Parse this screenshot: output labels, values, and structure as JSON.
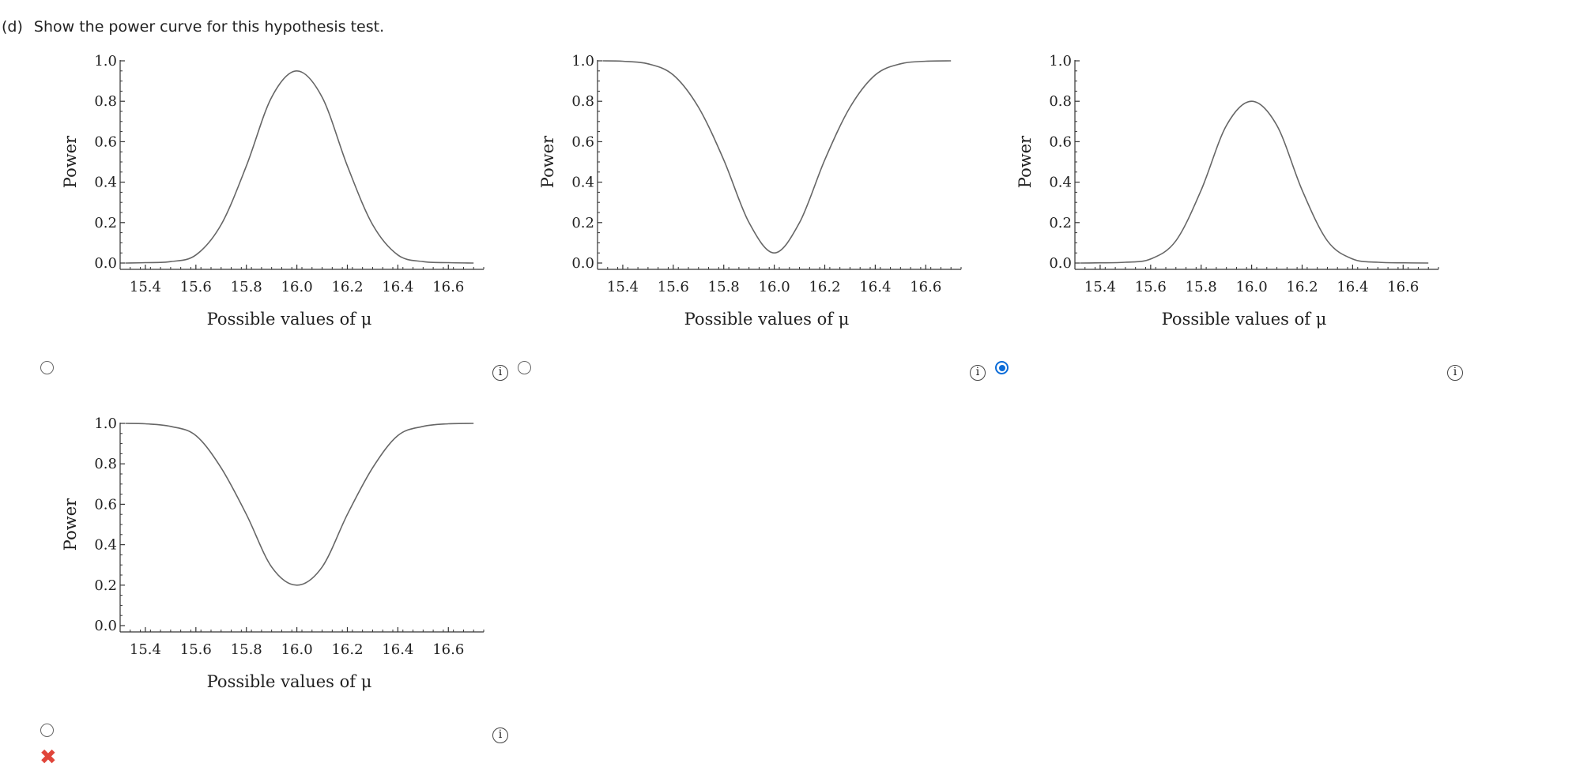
{
  "question": {
    "label": "(d)",
    "text": "Show the power curve for this hypothesis test."
  },
  "options": [
    {
      "id": "a",
      "selected": false,
      "info": "i",
      "curve": "peak",
      "peak_value": 0.95
    },
    {
      "id": "b",
      "selected": false,
      "info": "i",
      "curve": "dip",
      "min_value": 0.05
    },
    {
      "id": "c",
      "selected": true,
      "info": "i",
      "curve": "peak",
      "peak_value": 0.8
    },
    {
      "id": "d",
      "selected": false,
      "info": "i",
      "curve": "dip",
      "min_value": 0.2
    }
  ],
  "feedback": {
    "symbol": "✖",
    "color": "#e0453a"
  },
  "chart_data": [
    {
      "type": "line",
      "title": "",
      "xlabel": "Possible values of μ",
      "ylabel": "Power",
      "xlim": [
        15.3,
        16.74
      ],
      "ylim": [
        0,
        1
      ],
      "xticks": [
        "15.4",
        "15.6",
        "15.8",
        "16.0",
        "16.2",
        "16.4",
        "16.6"
      ],
      "yticks": [
        "0.0",
        "0.2",
        "0.4",
        "0.6",
        "0.8",
        "1.0"
      ],
      "series": [
        {
          "x": [
            15.32,
            15.4,
            15.5,
            15.6,
            15.7,
            15.8,
            15.9,
            16.0,
            16.1,
            16.2,
            16.3,
            16.4,
            16.5,
            16.6,
            16.7
          ],
          "y": [
            0.0,
            0.002,
            0.007,
            0.04,
            0.19,
            0.48,
            0.82,
            0.95,
            0.82,
            0.48,
            0.19,
            0.04,
            0.007,
            0.002,
            0.0
          ]
        }
      ]
    },
    {
      "type": "line",
      "title": "",
      "xlabel": "Possible values of μ",
      "ylabel": "Power",
      "xlim": [
        15.3,
        16.74
      ],
      "ylim": [
        0,
        1
      ],
      "xticks": [
        "15.4",
        "15.6",
        "15.8",
        "16.0",
        "16.2",
        "16.4",
        "16.6"
      ],
      "yticks": [
        "0.0",
        "0.2",
        "0.4",
        "0.6",
        "0.8",
        "1.0"
      ],
      "series": [
        {
          "x": [
            15.32,
            15.4,
            15.5,
            15.6,
            15.7,
            15.8,
            15.9,
            16.0,
            16.1,
            16.2,
            16.3,
            16.4,
            16.5,
            16.6,
            16.7
          ],
          "y": [
            1.0,
            0.998,
            0.985,
            0.93,
            0.77,
            0.51,
            0.2,
            0.05,
            0.2,
            0.51,
            0.77,
            0.93,
            0.985,
            0.998,
            1.0
          ]
        }
      ]
    },
    {
      "type": "line",
      "title": "",
      "xlabel": "Possible values of μ",
      "ylabel": "Power",
      "xlim": [
        15.3,
        16.74
      ],
      "ylim": [
        0,
        1
      ],
      "xticks": [
        "15.4",
        "15.6",
        "15.8",
        "16.0",
        "16.2",
        "16.4",
        "16.6"
      ],
      "yticks": [
        "0.0",
        "0.2",
        "0.4",
        "0.6",
        "0.8",
        "1.0"
      ],
      "series": [
        {
          "x": [
            15.32,
            15.4,
            15.5,
            15.6,
            15.7,
            15.8,
            15.9,
            16.0,
            16.1,
            16.2,
            16.3,
            16.4,
            16.5,
            16.6,
            16.7
          ],
          "y": [
            0.0,
            0.001,
            0.004,
            0.02,
            0.11,
            0.36,
            0.68,
            0.8,
            0.68,
            0.36,
            0.11,
            0.02,
            0.004,
            0.001,
            0.0
          ]
        }
      ]
    },
    {
      "type": "line",
      "title": "",
      "xlabel": "Possible values of μ",
      "ylabel": "Power",
      "xlim": [
        15.3,
        16.74
      ],
      "ylim": [
        0,
        1
      ],
      "xticks": [
        "15.4",
        "15.6",
        "15.8",
        "16.0",
        "16.2",
        "16.4",
        "16.6"
      ],
      "yticks": [
        "0.0",
        "0.2",
        "0.4",
        "0.6",
        "0.8",
        "1.0"
      ],
      "series": [
        {
          "x": [
            15.32,
            15.4,
            15.5,
            15.6,
            15.7,
            15.8,
            15.9,
            16.0,
            16.1,
            16.2,
            16.3,
            16.4,
            16.5,
            16.6,
            16.7
          ],
          "y": [
            1.0,
            0.998,
            0.985,
            0.94,
            0.78,
            0.55,
            0.29,
            0.2,
            0.29,
            0.55,
            0.78,
            0.94,
            0.985,
            0.998,
            1.0
          ]
        }
      ]
    }
  ]
}
